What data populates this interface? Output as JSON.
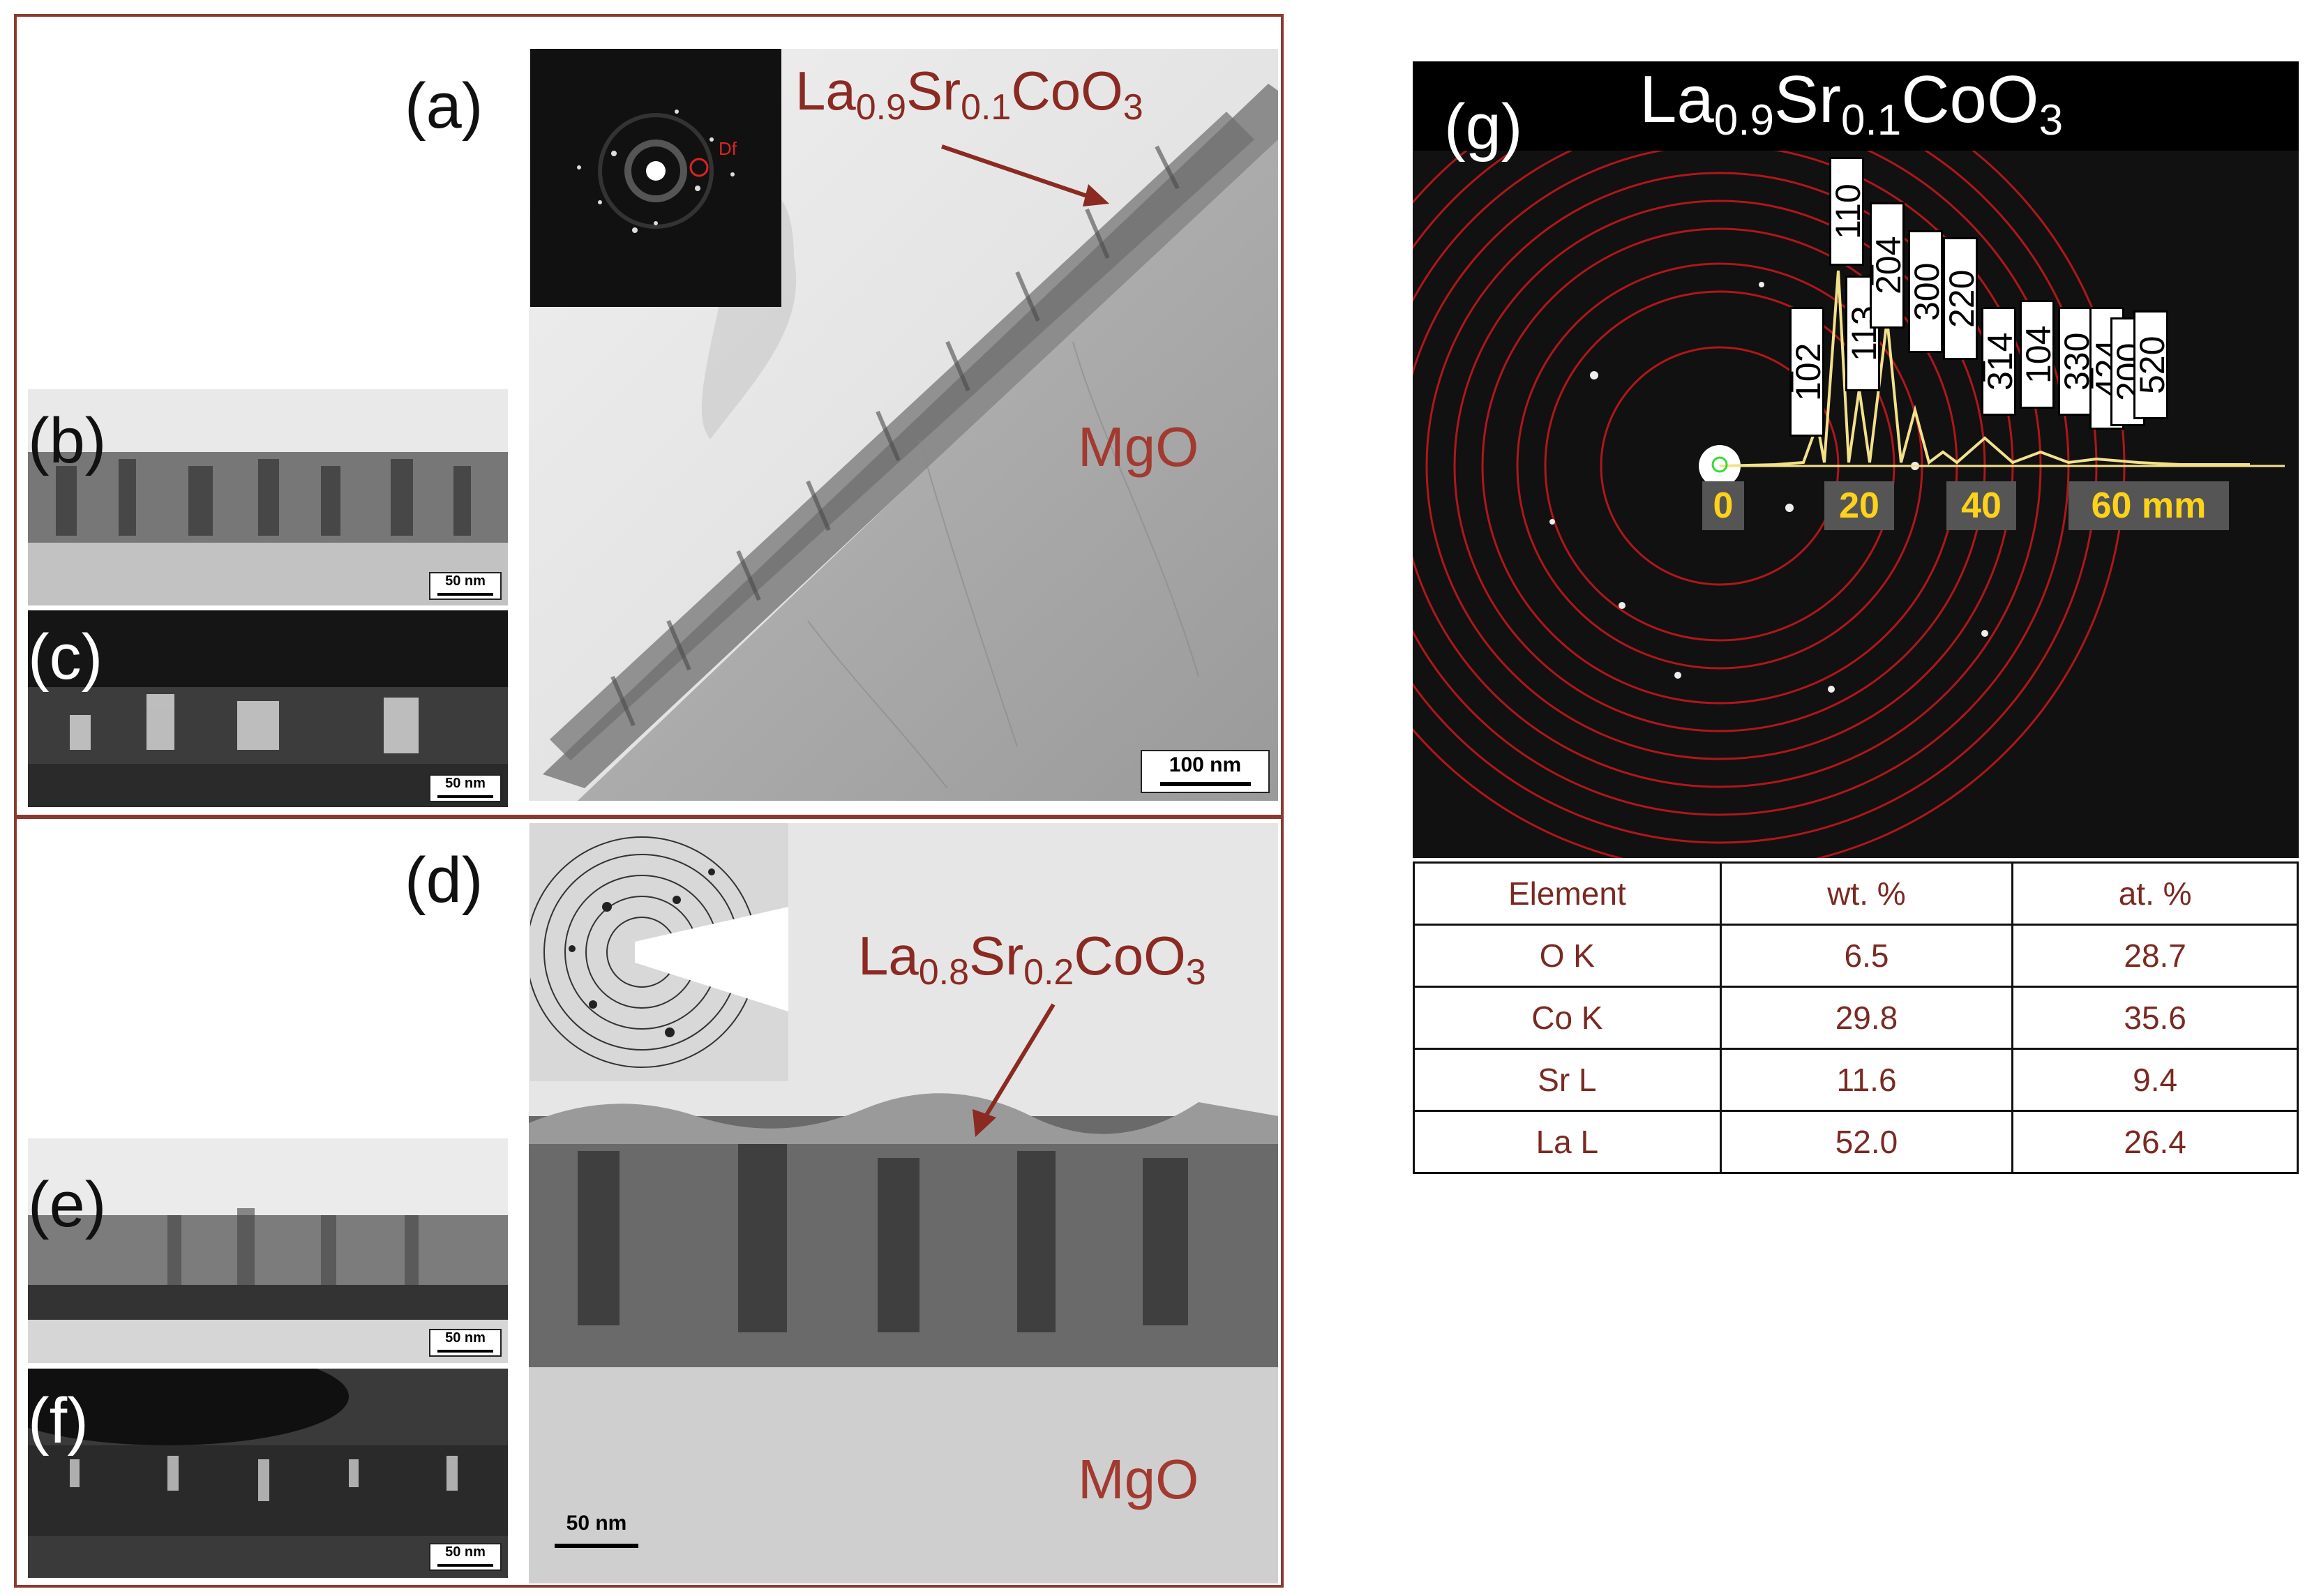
{
  "panels": {
    "a": {
      "letter": "(a)",
      "formula_base": "La",
      "formula_parts": [
        "La",
        "0.9",
        "Sr",
        "0.1",
        "CoO",
        "3"
      ],
      "substrate": "MgO",
      "scale": "100 nm",
      "inset_label": "Df"
    },
    "b": {
      "letter": "(b)",
      "scale": "50 nm"
    },
    "c": {
      "letter": "(c)",
      "scale": "50 nm"
    },
    "d": {
      "letter": "(d)",
      "formula_parts": [
        "La",
        "0.8",
        "Sr",
        "0.2",
        "CoO",
        "3"
      ],
      "substrate": "MgO",
      "scale": "50 nm"
    },
    "e": {
      "letter": "(e)",
      "scale": "50 nm"
    },
    "f": {
      "letter": "(f)",
      "scale": "50 nm"
    },
    "g": {
      "letter": "(g)",
      "formula_parts": [
        "La",
        "0.9",
        "Sr",
        "0.1",
        "CoO",
        "3"
      ],
      "axis_ticks": [
        "0",
        "20",
        "40",
        "60 mm"
      ],
      "hkl_labels": [
        "1̅02",
        "110",
        "113",
        "2̅04",
        "300",
        "220",
        "3̅14",
        "104",
        "330",
        "4̅24",
        "200",
        "520"
      ]
    }
  },
  "eds_table": {
    "headers": [
      "Element",
      "wt. %",
      "at. %"
    ],
    "rows": [
      [
        "O K",
        "6.5",
        "28.7"
      ],
      [
        "Co K",
        "29.8",
        "35.6"
      ],
      [
        "Sr L",
        "11.6",
        "9.4"
      ],
      [
        "La L",
        "52.0",
        "26.4"
      ]
    ]
  },
  "colors": {
    "frame": "#8b3a30",
    "annotation": "#8a2a22",
    "ring": "#b0161b",
    "tick_text": "#ffd21a"
  }
}
